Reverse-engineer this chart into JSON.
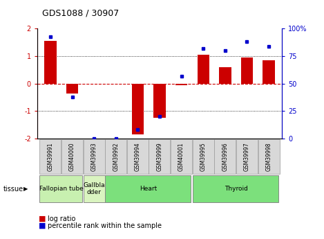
{
  "title": "GDS1088 / 30907",
  "samples": [
    "GSM39991",
    "GSM40000",
    "GSM39993",
    "GSM39992",
    "GSM39994",
    "GSM39999",
    "GSM40001",
    "GSM39995",
    "GSM39996",
    "GSM39997",
    "GSM39998"
  ],
  "log_ratio": [
    1.55,
    -0.35,
    0.0,
    0.0,
    -1.85,
    -1.25,
    -0.05,
    1.05,
    0.6,
    0.95,
    0.85
  ],
  "percentile_rank": [
    93,
    38,
    0,
    0,
    8,
    20,
    57,
    82,
    80,
    88,
    84
  ],
  "tissues": [
    {
      "label": "Fallopian tube",
      "start": 0,
      "end": 1,
      "color": "#c8f0b0"
    },
    {
      "label": "Gallbla\ndder",
      "start": 2,
      "end": 2,
      "color": "#daf4c0"
    },
    {
      "label": "Heart",
      "start": 3,
      "end": 6,
      "color": "#7ce07c"
    },
    {
      "label": "Thyroid",
      "start": 7,
      "end": 10,
      "color": "#7ce07c"
    }
  ],
  "bar_color": "#cc0000",
  "dot_color": "#0000cc",
  "ylim_left": [
    -2,
    2
  ],
  "ylim_right": [
    0,
    100
  ],
  "yticks_left": [
    -2,
    -1,
    0,
    1,
    2
  ],
  "yticks_right": [
    0,
    25,
    50,
    75,
    100
  ],
  "ytick_labels_right": [
    "0",
    "25",
    "50",
    "75",
    "100%"
  ],
  "hline_color": "#cc0000",
  "dotline_color": "black",
  "background_color": "white",
  "sample_box_color": "#d8d8d8",
  "sample_box_edge": "#999999"
}
